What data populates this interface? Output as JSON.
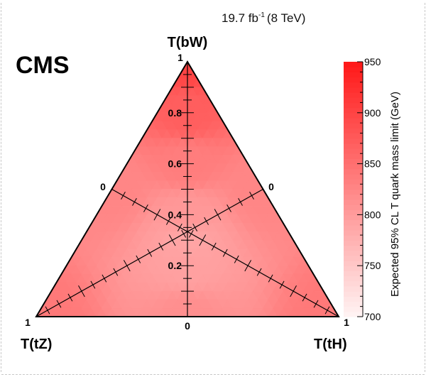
{
  "chart_data": {
    "type": "heatmap",
    "projection": "ternary",
    "experiment": "CMS",
    "luminosity": {
      "value": "19.7 fb",
      "exponent": "-1",
      "energy": "(8 TeV)"
    },
    "corners": {
      "top": "T(bW)",
      "left": "T(tZ)",
      "right": "T(tH)"
    },
    "corner_value_labels": {
      "top": "1",
      "left": "1",
      "right": "1"
    },
    "side_zero_labels": {
      "left": "0",
      "right": "0",
      "bottom": "0"
    },
    "vertical_axis": {
      "ticks": [
        0.2,
        0.4,
        0.6,
        0.8
      ],
      "tick_labels": [
        "0.2",
        "0.4",
        "0.6",
        "0.8"
      ]
    },
    "colorbar": {
      "label": "Expected 95% CL T quark mass limit (GeV)",
      "min": 700,
      "max": 950,
      "ticks": [
        700,
        750,
        800,
        850,
        900,
        950
      ],
      "tick_labels": [
        "700",
        "750",
        "800",
        "850",
        "900",
        "950"
      ],
      "color_low": "#fff4f4",
      "color_high": "#ff1818"
    },
    "series": [
      {
        "values": [
          {
            "bW": 1.0,
            "tH": 0.0,
            "tZ": 0.0,
            "limit": 900
          },
          {
            "bW": 0.8,
            "tH": 0.1,
            "tZ": 0.1,
            "limit": 870
          },
          {
            "bW": 0.6,
            "tH": 0.2,
            "tZ": 0.2,
            "limit": 835
          },
          {
            "bW": 0.4,
            "tH": 0.3,
            "tZ": 0.3,
            "limit": 805
          },
          {
            "bW": 0.3,
            "tH": 0.35,
            "tZ": 0.35,
            "limit": 790
          },
          {
            "bW": 0.2,
            "tH": 0.4,
            "tZ": 0.4,
            "limit": 795
          },
          {
            "bW": 0.0,
            "tH": 0.0,
            "tZ": 1.0,
            "limit": 840
          },
          {
            "bW": 0.0,
            "tH": 1.0,
            "tZ": 0.0,
            "limit": 840
          },
          {
            "bW": 0.0,
            "tH": 0.5,
            "tZ": 0.5,
            "limit": 815
          },
          {
            "bW": 0.5,
            "tH": 0.0,
            "tZ": 0.5,
            "limit": 825
          },
          {
            "bW": 0.5,
            "tH": 0.5,
            "tZ": 0.0,
            "limit": 825
          }
        ]
      }
    ]
  }
}
